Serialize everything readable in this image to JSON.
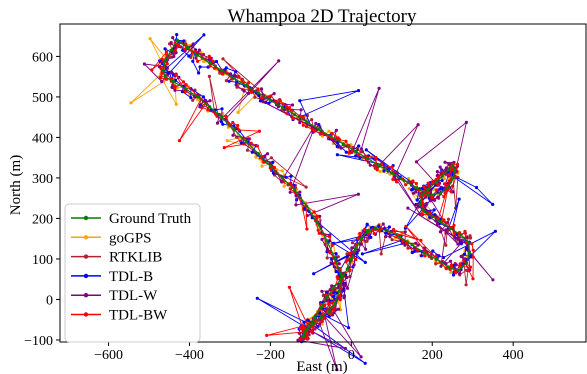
{
  "chart_data": {
    "type": "line",
    "title": "Whampoa 2D Trajectory",
    "xlabel": "East (m)",
    "ylabel": "North (m)",
    "xlim": [
      -720,
      580
    ],
    "ylim": [
      -105,
      680
    ],
    "xticks": [
      -600,
      -400,
      -200,
      0,
      200,
      400
    ],
    "yticks": [
      -100,
      0,
      100,
      200,
      300,
      400,
      500,
      600
    ],
    "grid": false,
    "legend_position": "lower-left",
    "series": [
      {
        "name": "Ground Truth",
        "color": "#008000",
        "x": [
          -430,
          -405,
          -380,
          -350,
          -320,
          -290,
          -260,
          -230,
          -200,
          -170,
          -140,
          -110,
          -80,
          -50,
          -20,
          10,
          40,
          70,
          100,
          130,
          160,
          190,
          220,
          240,
          252,
          255,
          250,
          240,
          225,
          210,
          190,
          175,
          170,
          180,
          200,
          220,
          245,
          270,
          290,
          292,
          285,
          265,
          240,
          210,
          180,
          150,
          120,
          90,
          60,
          40,
          25,
          10,
          0,
          -10,
          -25,
          -45,
          -60,
          -75,
          -90,
          -105,
          -115,
          -120,
          -118,
          -110,
          -95,
          -75,
          -55,
          -40,
          -30,
          -25,
          -40,
          -60,
          -85,
          -110,
          -140,
          -170,
          -200,
          -230,
          -260,
          -290,
          -320,
          -350,
          -380,
          -410,
          -440,
          -460,
          -465,
          -460,
          -445,
          -430
        ],
        "y": [
          640,
          622,
          603,
          584,
          565,
          546,
          528,
          510,
          492,
          474,
          456,
          438,
          420,
          402,
          384,
          366,
          348,
          330,
          312,
          294,
          276,
          258,
          262,
          278,
          300,
          320,
          330,
          320,
          305,
          290,
          272,
          258,
          235,
          218,
          205,
          192,
          175,
          160,
          140,
          115,
          90,
          72,
          80,
          100,
          115,
          135,
          155,
          170,
          175,
          168,
          150,
          125,
          100,
          75,
          50,
          28,
          5,
          -20,
          -45,
          -65,
          -80,
          -92,
          -90,
          -75,
          -60,
          -45,
          -30,
          -10,
          20,
          60,
          100,
          145,
          190,
          230,
          270,
          300,
          330,
          360,
          390,
          420,
          450,
          475,
          500,
          520,
          538,
          550,
          565,
          590,
          615,
          640
        ]
      },
      {
        "name": "goGPS",
        "color": "#ffa500",
        "x": [],
        "y": []
      },
      {
        "name": "RTKLIB",
        "color": "#b22234",
        "x": [],
        "y": []
      },
      {
        "name": "TDL-B",
        "color": "#0000ff",
        "x": [],
        "y": []
      },
      {
        "name": "TDL-W",
        "color": "#800080",
        "x": [],
        "y": []
      },
      {
        "name": "TDL-BW",
        "color": "#ff0000",
        "x": [],
        "y": []
      }
    ]
  }
}
